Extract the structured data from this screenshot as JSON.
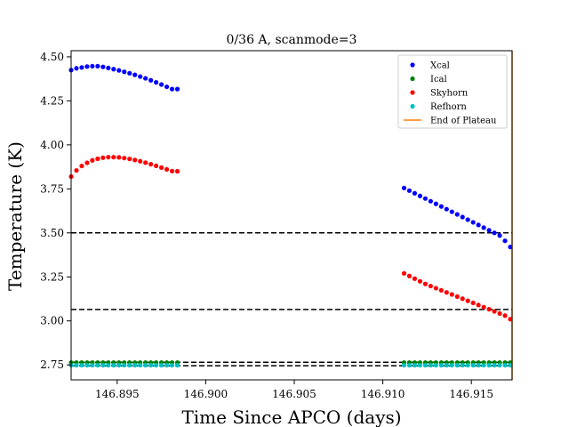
{
  "chart_data": {
    "type": "scatter",
    "title": "0/36 A, scanmode=3",
    "xlabel": "Time Since APCO (days)",
    "ylabel": "Temperature (K)",
    "xlim": [
      146.8924,
      146.9173
    ],
    "ylim": [
      2.665,
      4.535
    ],
    "xticks": [
      146.895,
      146.9,
      146.905,
      146.91,
      146.915
    ],
    "xtick_labels": [
      "146.895",
      "146.900",
      "146.905",
      "146.910",
      "146.915"
    ],
    "yticks": [
      2.75,
      3.0,
      3.25,
      3.5,
      3.75,
      4.0,
      4.25,
      4.5
    ],
    "ytick_labels": [
      "2.75",
      "3.00",
      "3.25",
      "3.50",
      "3.75",
      "4.00",
      "4.25",
      "4.50"
    ],
    "legend_position": "top-right",
    "hlines": [
      3.5,
      3.065,
      2.765,
      2.745
    ],
    "vline": {
      "name": "End of Plateau",
      "x": 146.9173,
      "color": "#ff7f0e"
    },
    "series": [
      {
        "name": "Xcal",
        "color": "#0000ff",
        "segments": [
          {
            "x_start": 146.8924,
            "x_step": 0.0003,
            "count": 21,
            "y": [
              4.425,
              4.435,
              4.44,
              4.445,
              4.447,
              4.447,
              4.443,
              4.437,
              4.43,
              4.423,
              4.415,
              4.407,
              4.398,
              4.388,
              4.378,
              4.367,
              4.355,
              4.343,
              4.33,
              4.317,
              4.317
            ]
          },
          {
            "x_start": 146.9112,
            "x_step": 0.0003,
            "count": 21,
            "y": [
              3.755,
              3.74,
              3.725,
              3.71,
              3.695,
              3.68,
              3.665,
              3.65,
              3.635,
              3.62,
              3.605,
              3.59,
              3.575,
              3.56,
              3.545,
              3.53,
              3.515,
              3.5,
              3.485,
              3.455,
              3.42
            ]
          }
        ]
      },
      {
        "name": "Ical",
        "color": "#008000",
        "segments": [
          {
            "x_start": 146.8924,
            "x_step": 0.0003,
            "count": 21,
            "y": [
              2.763
            ]
          },
          {
            "x_start": 146.9112,
            "x_step": 0.0003,
            "count": 21,
            "y": [
              2.763
            ]
          }
        ]
      },
      {
        "name": "Skyhorn",
        "color": "#ff0000",
        "segments": [
          {
            "x_start": 146.8924,
            "x_step": 0.0003,
            "count": 21,
            "y": [
              3.82,
              3.855,
              3.88,
              3.898,
              3.912,
              3.921,
              3.927,
              3.93,
              3.93,
              3.929,
              3.925,
              3.92,
              3.914,
              3.907,
              3.899,
              3.89,
              3.881,
              3.871,
              3.861,
              3.851,
              3.85
            ]
          },
          {
            "x_start": 146.9112,
            "x_step": 0.0003,
            "count": 21,
            "y": [
              3.27,
              3.255,
              3.24,
              3.225,
              3.21,
              3.198,
              3.186,
              3.174,
              3.162,
              3.15,
              3.138,
              3.126,
              3.114,
              3.102,
              3.09,
              3.078,
              3.066,
              3.054,
              3.042,
              3.03,
              3.01
            ]
          }
        ]
      },
      {
        "name": "Refhorn",
        "color": "#00bfbf",
        "segments": [
          {
            "x_start": 146.8924,
            "x_step": 0.0003,
            "count": 21,
            "y": [
              2.748
            ]
          },
          {
            "x_start": 146.9112,
            "x_step": 0.0003,
            "count": 21,
            "y": [
              2.748
            ]
          }
        ]
      }
    ]
  }
}
